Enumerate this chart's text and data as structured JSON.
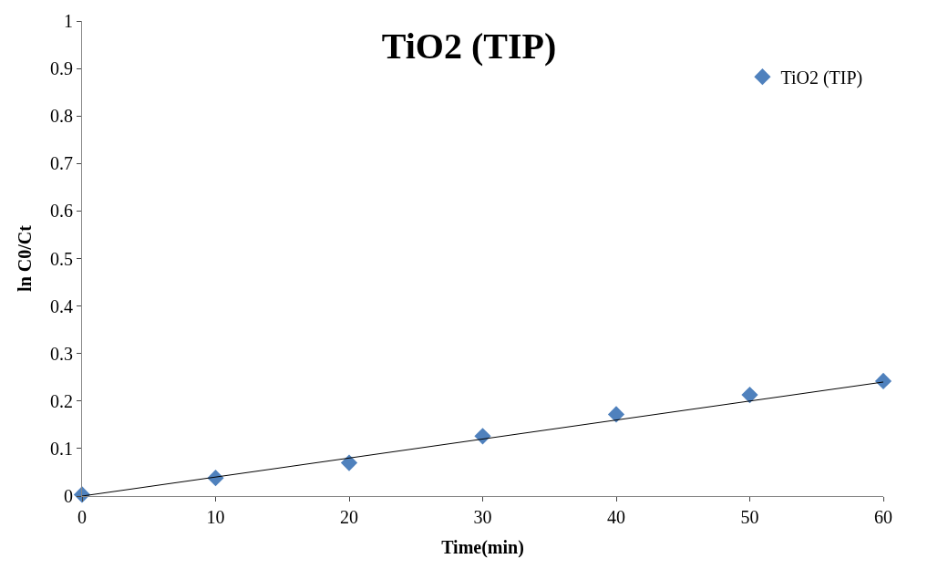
{
  "chart_data": {
    "type": "scatter",
    "title": "TiO2 (TIP)",
    "xlabel": "Time(min)",
    "ylabel": "ln C0/Ct",
    "x": [
      0,
      10,
      20,
      30,
      40,
      50,
      60
    ],
    "series": [
      {
        "name": "TiO2 (TIP)",
        "color": "#4f81bd",
        "values": [
          0.003,
          0.038,
          0.07,
          0.126,
          0.172,
          0.213,
          0.242
        ],
        "marker": "diamond"
      },
      {
        "type": "line",
        "color": "#000000",
        "x": [
          0,
          60
        ],
        "values": [
          0,
          0.24
        ],
        "marker": "none",
        "line_style": "solid"
      }
    ],
    "xlim": [
      0,
      60
    ],
    "xticks": [
      0,
      10,
      20,
      30,
      40,
      50,
      60
    ],
    "ylim": [
      0,
      1
    ],
    "yticks": [
      0,
      0.1,
      0.2,
      0.3,
      0.4,
      0.5,
      0.6,
      0.7,
      0.8,
      0.9,
      1
    ],
    "legend": "top right"
  }
}
